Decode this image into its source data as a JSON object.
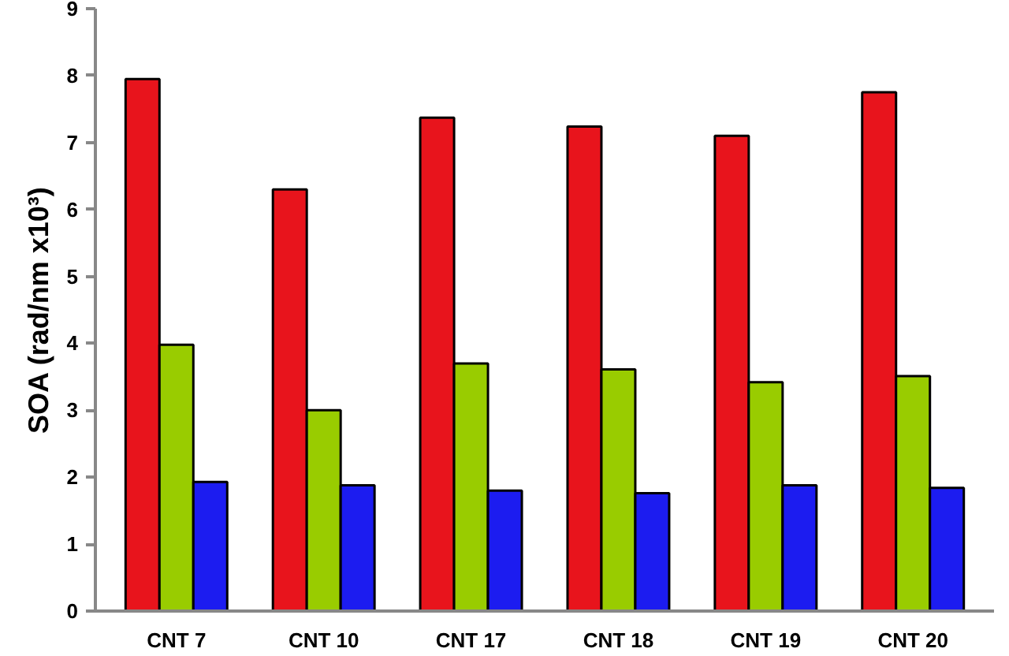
{
  "chart_data": {
    "type": "bar",
    "ylabel": "SOA (rad/nm x10³)",
    "categories": [
      "CNT 7",
      "CNT 10",
      "CNT 17",
      "CNT 18",
      "CNT 19",
      "CNT 20"
    ],
    "series": [
      {
        "color": "#e8141c",
        "values": [
          7.95,
          6.3,
          7.37,
          7.24,
          7.1,
          7.75
        ]
      },
      {
        "color": "#99cc00",
        "values": [
          3.98,
          3.0,
          3.7,
          3.61,
          3.42,
          3.51
        ]
      },
      {
        "color": "#1c1cf0",
        "values": [
          1.93,
          1.88,
          1.8,
          1.76,
          1.88,
          1.84
        ]
      }
    ],
    "ylim": [
      0,
      9
    ],
    "yticks": [
      0,
      1,
      2,
      3,
      4,
      5,
      6,
      7,
      8,
      9
    ],
    "grid": false
  }
}
